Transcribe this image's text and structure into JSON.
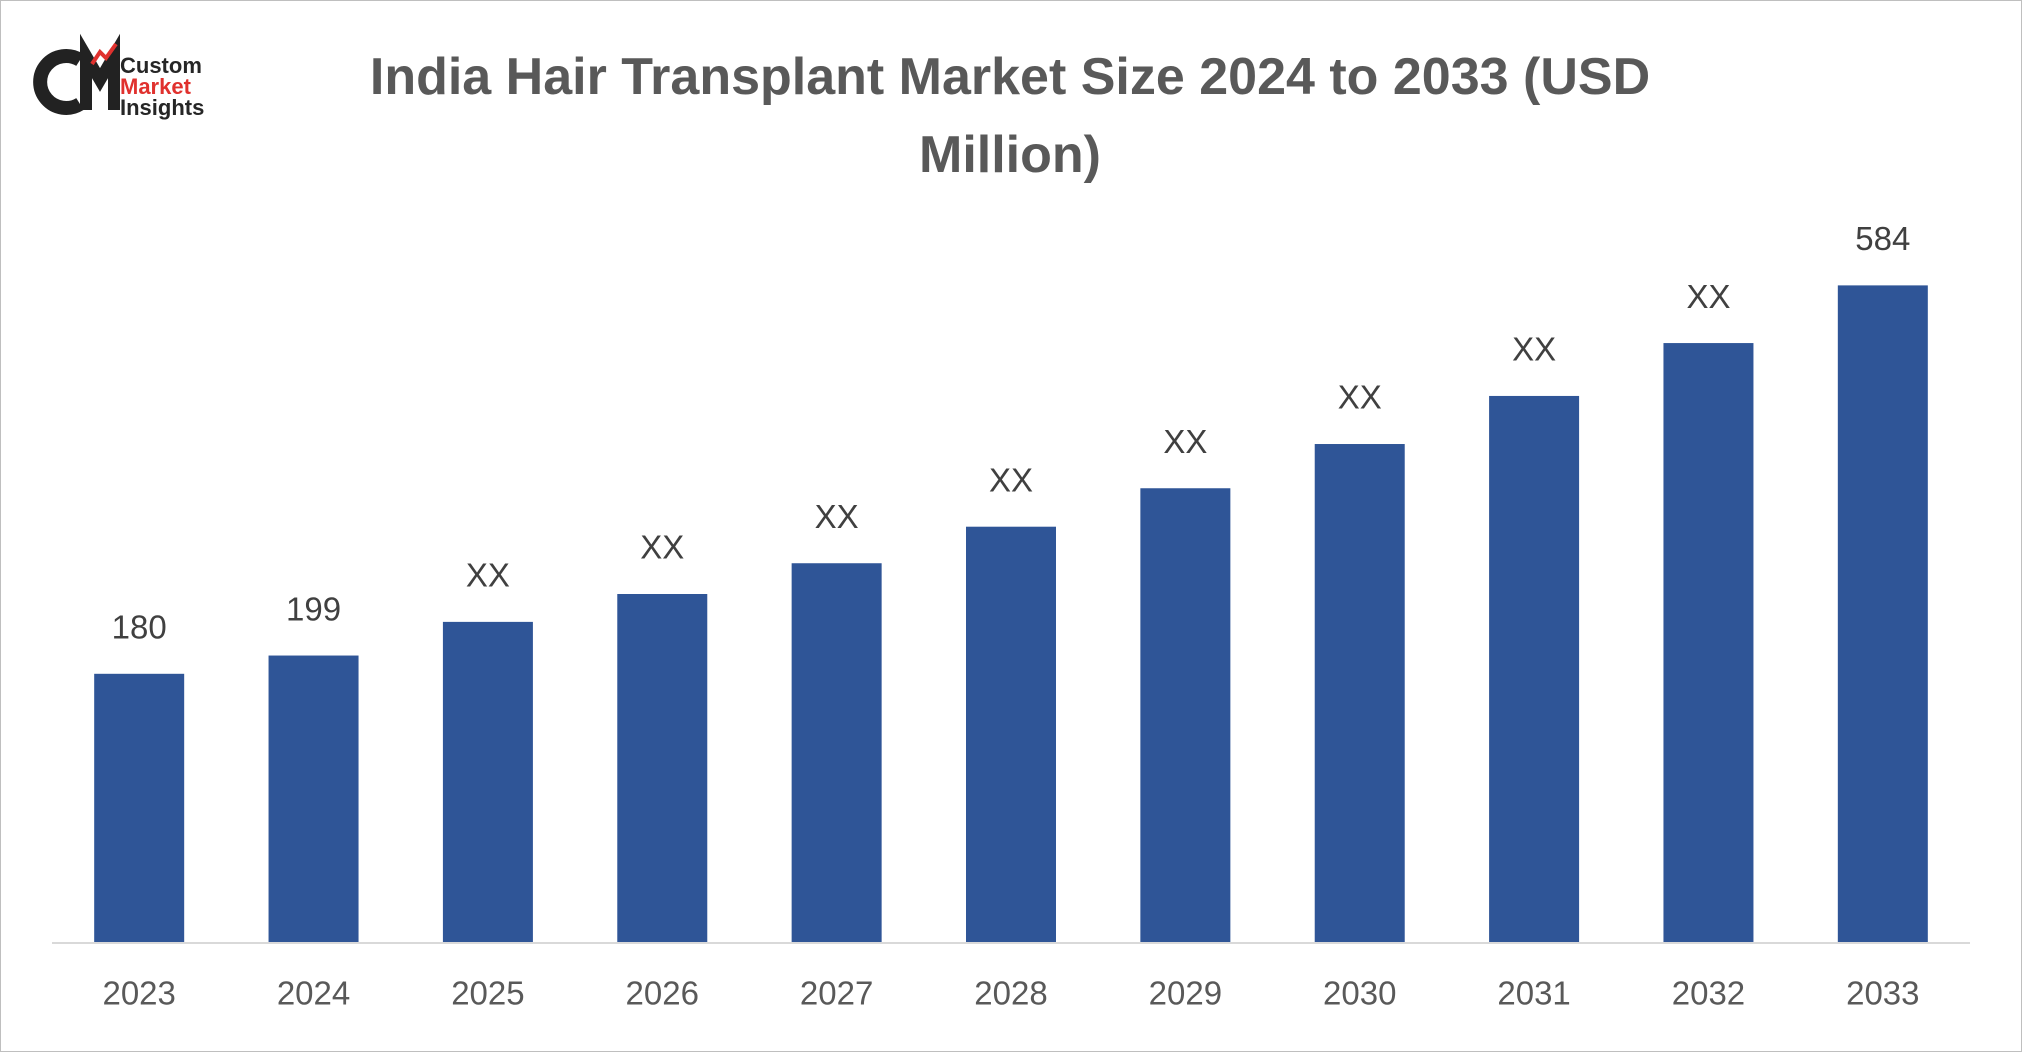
{
  "logo": {
    "lines": [
      "Custom",
      "Market",
      "Insights"
    ]
  },
  "chart_data": {
    "type": "bar",
    "title": "India Hair Transplant Market Size 2024 to 2033 (USD Million)",
    "categories": [
      "2023",
      "2024",
      "2025",
      "2026",
      "2027",
      "2028",
      "2029",
      "2030",
      "2031",
      "2032",
      "2033"
    ],
    "values": [
      180,
      199,
      234,
      263,
      295,
      333,
      373,
      419,
      469,
      524,
      584
    ],
    "value_labels": [
      "180",
      "199",
      "XX",
      "XX",
      "XX",
      "XX",
      "XX",
      "XX",
      "XX",
      "XX",
      "584"
    ],
    "color": "#2f5597",
    "ylim": [
      -100,
      600
    ]
  }
}
